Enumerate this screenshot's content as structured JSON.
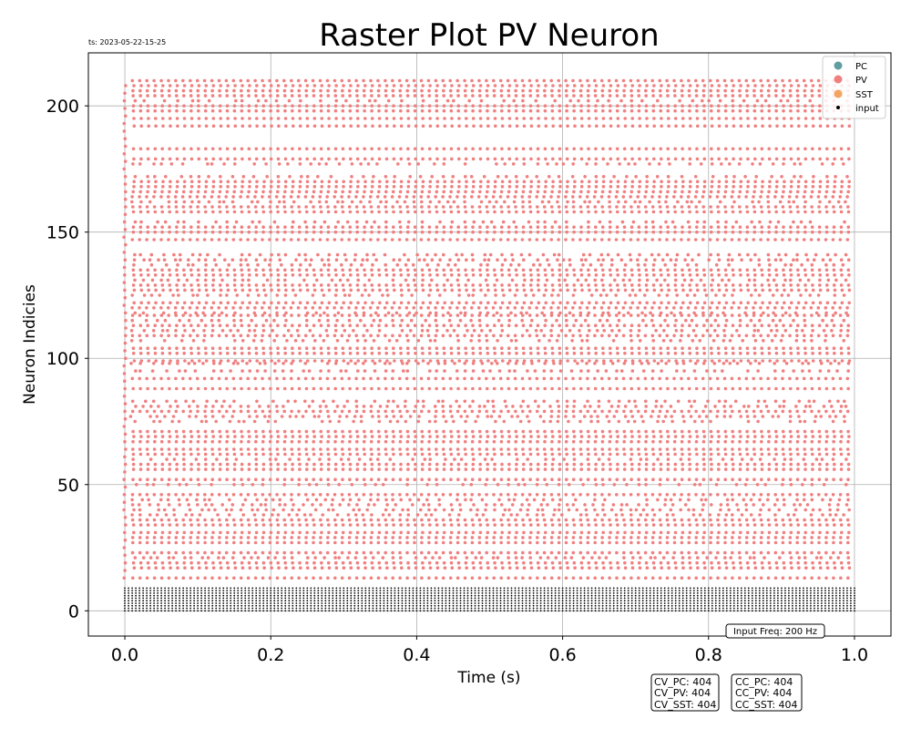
{
  "chart_data": {
    "type": "scatter",
    "title": "Raster Plot PV Neuron",
    "timestamp": "ts: 2023-05-22-15-25",
    "xlabel": "Time (s)",
    "ylabel": "Neuron Indicies",
    "xlim": [
      -0.05,
      1.05
    ],
    "ylim": [
      -10,
      221
    ],
    "xticks": [
      0.0,
      0.2,
      0.4,
      0.6,
      0.8,
      1.0
    ],
    "xtick_labels": [
      "0.0",
      "0.2",
      "0.4",
      "0.6",
      "0.8",
      "1.0"
    ],
    "yticks": [
      0,
      50,
      100,
      150,
      200
    ],
    "ytick_labels": [
      "0",
      "50",
      "100",
      "150",
      "200"
    ],
    "grid": true,
    "legend_position": "top-right",
    "legend": [
      {
        "name": "PC",
        "color": "#5f9ea0"
      },
      {
        "name": "PV",
        "color": "#f08080"
      },
      {
        "name": "SST",
        "color": "#f4a460"
      },
      {
        "name": "input",
        "color": "#000000"
      }
    ],
    "series": [
      {
        "name": "PV",
        "color": "#f08080",
        "time_range": [
          0.0,
          1.0
        ],
        "neuron_rows": [
          13,
          17,
          19,
          21,
          23,
          27,
          29,
          31,
          34,
          36,
          38,
          40,
          42,
          44,
          46,
          50,
          52,
          56,
          58,
          60,
          62,
          64,
          67,
          69,
          71,
          75,
          77,
          79,
          81,
          83,
          88,
          92,
          95,
          98,
          99,
          102,
          104,
          107,
          109,
          111,
          113,
          115,
          117,
          118,
          120,
          122,
          125,
          127,
          129,
          131,
          133,
          135,
          137,
          139,
          141,
          147,
          150,
          152,
          154,
          158,
          160,
          162,
          164,
          166,
          168,
          170,
          172,
          177,
          179,
          183,
          192,
          195,
          198,
          200,
          202,
          204,
          206,
          208,
          210
        ]
      },
      {
        "name": "input",
        "color": "#000000",
        "time_range": [
          0.0,
          1.0
        ],
        "neuron_rows": [
          0,
          1,
          2,
          3,
          4,
          5,
          6,
          7,
          8,
          9
        ]
      }
    ],
    "annotations": {
      "input_freq": "Input Freq: 200 Hz",
      "cv_box": [
        "CV_PC: 404",
        "CV_PV: 404",
        "CV_SST: 404"
      ],
      "cc_box": [
        "CC_PC: 404",
        "CC_PV: 404",
        "CC_SST: 404"
      ]
    }
  }
}
